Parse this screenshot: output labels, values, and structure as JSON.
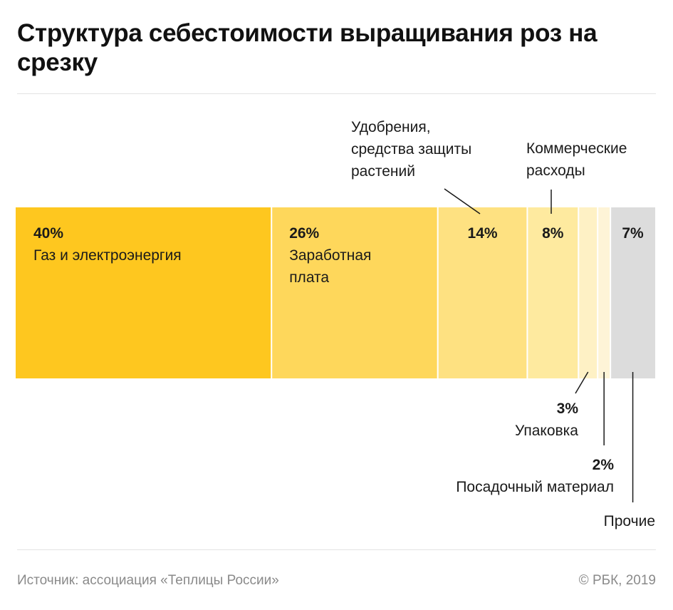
{
  "title": "Структура себестоимости выращивания роз на срезку",
  "footer": {
    "source": "Источник: ассоциация «Теплицы России»",
    "copyright": "© РБК, 2019"
  },
  "chart_data": {
    "type": "bar",
    "orientation": "horizontal",
    "stacked": true,
    "unit": "%",
    "categories": [
      "Газ и электроэнергия",
      "Заработная плата",
      "Удобрения, средства защиты растений",
      "Коммерческие расходы",
      "Упаковка",
      "Посадочный материал",
      "Прочие"
    ],
    "values": [
      40,
      26,
      14,
      8,
      3,
      2,
      7
    ],
    "value_labels": [
      "40%",
      "26%",
      "14%",
      "8%",
      "3%",
      "2%",
      "7%"
    ],
    "category_lines": [
      [
        "Газ и электроэнергия"
      ],
      [
        "Заработная",
        "плата"
      ],
      [
        "Удобрения,",
        "средства защиты",
        "растений"
      ],
      [
        "Коммерческие",
        "расходы"
      ],
      [
        "Упаковка"
      ],
      [
        "Посадочный материал"
      ],
      [
        "Прочие"
      ]
    ],
    "colors": [
      "#fec71f",
      "#fed75b",
      "#fee181",
      "#feea9f",
      "#fef1c5",
      "#fef4d7",
      "#dcdcdc"
    ],
    "label_placement": [
      "inside",
      "inside",
      "above",
      "above",
      "below",
      "below",
      "below"
    ]
  }
}
